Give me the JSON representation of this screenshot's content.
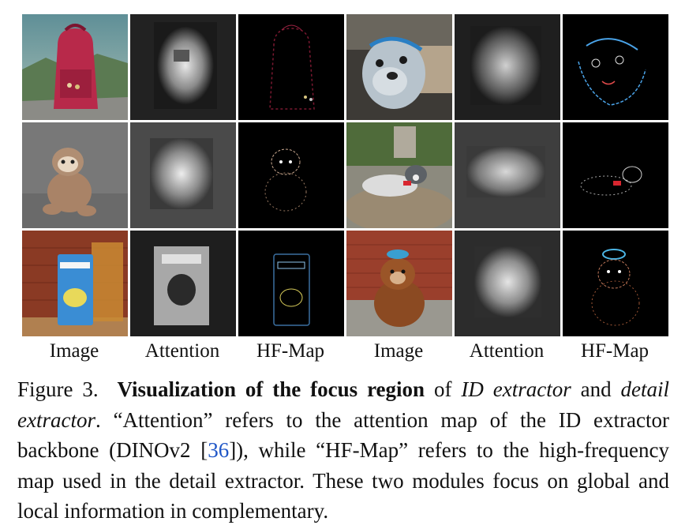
{
  "figure": {
    "column_labels": [
      "Image",
      "Attention",
      "HF-Map",
      "Image",
      "Attention",
      "HF-Map"
    ],
    "caption": {
      "number": "Figure 3.",
      "bold_title": "Visualization of the focus region",
      "text_1": " of ",
      "italic_1": "ID extractor",
      "text_2": " and ",
      "italic_2": "detail extractor",
      "text_3": ".  “Attention” refers to the attention map of the ID extractor backbone (DINOv2 [",
      "cite": "36",
      "text_4": "]), while “HF-Map” refers to the high-frequency map used in the detail extractor.  These two modules focus on global and local information in complementary."
    },
    "rows": [
      {
        "left": "backpack",
        "right": "dog-backpack"
      },
      {
        "left": "sloth-plush",
        "right": "husky-plush"
      },
      {
        "left": "beer-can",
        "right": "teddy-bear"
      }
    ]
  },
  "colors": {
    "citation": "#1f56c7",
    "hf_background": "#000000"
  }
}
